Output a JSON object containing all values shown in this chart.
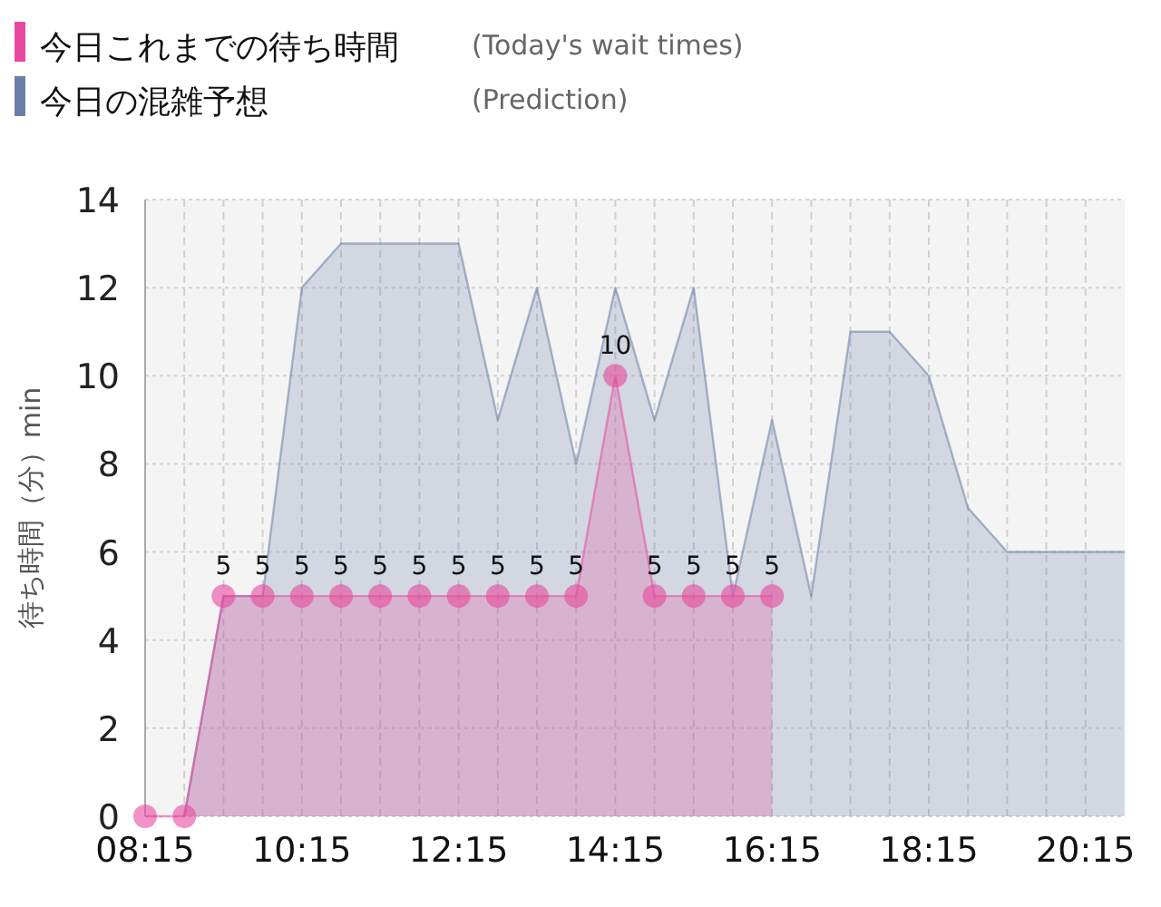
{
  "chart_data": {
    "type": "area",
    "ylabel": "待ち時間（分）min",
    "x": [
      8.25,
      8.75,
      9.25,
      9.75,
      10.25,
      10.75,
      11.25,
      11.75,
      12.25,
      12.75,
      13.25,
      13.75,
      14.25,
      14.75,
      15.25,
      15.75,
      16.25,
      16.75,
      17.25,
      17.75,
      18.25,
      18.75,
      19.25,
      19.75,
      20.25,
      20.75
    ],
    "series": [
      {
        "name": "今日これまでの待ち時間",
        "color": "#e8489f",
        "marker": "circle",
        "values": [
          0,
          0,
          5,
          5,
          5,
          5,
          5,
          5,
          5,
          5,
          5,
          5,
          10,
          5,
          5,
          5,
          5,
          null,
          null,
          null,
          null,
          null,
          null,
          null,
          null,
          null
        ],
        "value_labels": [
          null,
          null,
          "5",
          "5",
          "5",
          "5",
          "5",
          "5",
          "5",
          "5",
          "5",
          "5",
          "10",
          "5",
          "5",
          "5",
          "5",
          null,
          null,
          null,
          null,
          null,
          null,
          null,
          null,
          null
        ]
      },
      {
        "name": "今日の混雑予想",
        "color": "#6a7fa6",
        "marker": "none",
        "values": [
          null,
          0,
          5,
          5,
          12,
          13,
          13,
          13,
          13,
          9,
          12,
          8,
          12,
          9,
          12,
          5,
          9,
          5,
          11,
          11,
          10,
          7,
          6,
          6,
          6,
          6
        ]
      }
    ],
    "annotations": [
      "(Today's wait times)",
      "(Prediction)"
    ],
    "xlim": [
      8.25,
      20.75
    ],
    "ylim": [
      0,
      14
    ],
    "xticks": [
      {
        "value": 8.25,
        "label": "08:15"
      },
      {
        "value": 8.75,
        "label": null
      },
      {
        "value": 9.25,
        "label": null
      },
      {
        "value": 9.75,
        "label": null
      },
      {
        "value": 10.25,
        "label": "10:15"
      },
      {
        "value": 10.75,
        "label": null
      },
      {
        "value": 11.25,
        "label": null
      },
      {
        "value": 11.75,
        "label": null
      },
      {
        "value": 12.25,
        "label": "12:15"
      },
      {
        "value": 12.75,
        "label": null
      },
      {
        "value": 13.25,
        "label": null
      },
      {
        "value": 13.75,
        "label": null
      },
      {
        "value": 14.25,
        "label": "14:15"
      },
      {
        "value": 14.75,
        "label": null
      },
      {
        "value": 15.25,
        "label": null
      },
      {
        "value": 15.75,
        "label": null
      },
      {
        "value": 16.25,
        "label": "16:15"
      },
      {
        "value": 16.75,
        "label": null
      },
      {
        "value": 17.25,
        "label": null
      },
      {
        "value": 17.75,
        "label": null
      },
      {
        "value": 18.25,
        "label": "18:15"
      },
      {
        "value": 18.75,
        "label": null
      },
      {
        "value": 19.25,
        "label": null
      },
      {
        "value": 19.75,
        "label": null
      },
      {
        "value": 20.25,
        "label": "20:15"
      }
    ],
    "yticks": [
      0,
      2,
      4,
      6,
      8,
      10,
      12,
      14
    ],
    "grid": true,
    "legend": "top left"
  }
}
